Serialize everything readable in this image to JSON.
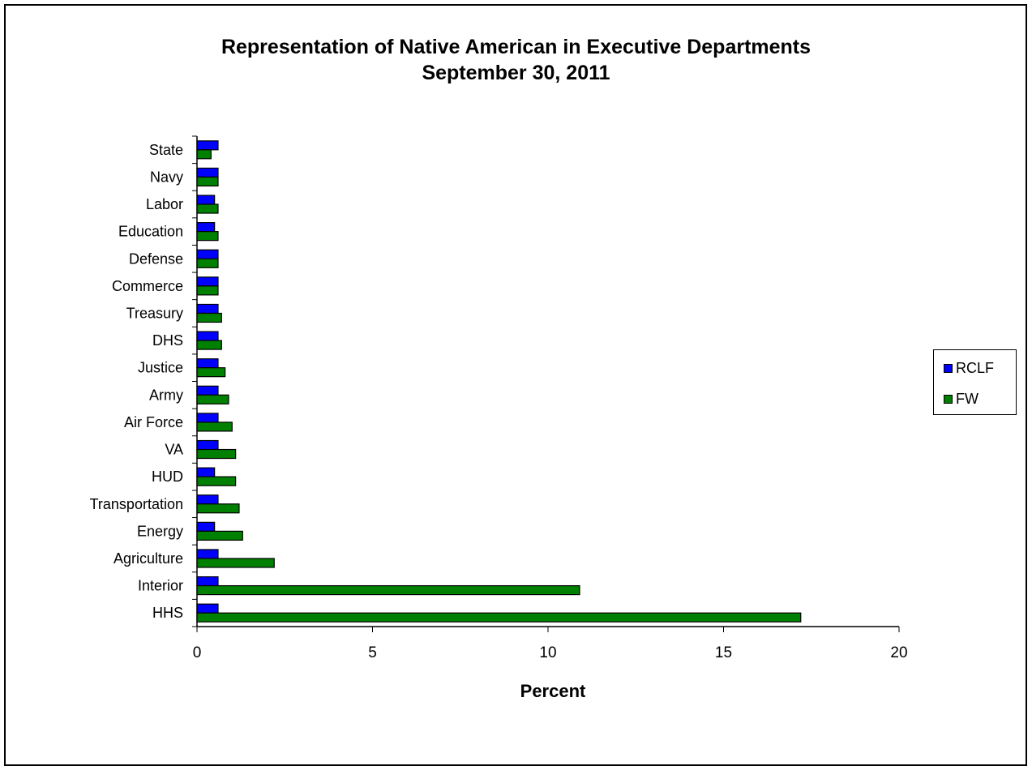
{
  "chart_data": {
    "type": "bar",
    "orientation": "horizontal",
    "title": "Representation of Native American in Executive Departments",
    "subtitle": "September 30, 2011",
    "xlabel": "Percent",
    "ylabel": "",
    "xlim": [
      0,
      20
    ],
    "x_ticks": [
      "0",
      "5",
      "10",
      "15",
      "20"
    ],
    "grid": false,
    "legend_position": "right",
    "categories": [
      "State",
      "Navy",
      "Labor",
      "Education",
      "Defense",
      "Commerce",
      "Treasury",
      "DHS",
      "Justice",
      "Army",
      "Air Force",
      "VA",
      "HUD",
      "Transportation",
      "Energy",
      "Agriculture",
      "Interior",
      "HHS"
    ],
    "series": [
      {
        "name": "RCLF",
        "color": "#0000ff",
        "values": [
          0.6,
          0.6,
          0.5,
          0.5,
          0.6,
          0.6,
          0.6,
          0.6,
          0.6,
          0.6,
          0.6,
          0.6,
          0.5,
          0.6,
          0.5,
          0.6,
          0.6,
          0.6
        ]
      },
      {
        "name": "FW",
        "color": "#008000",
        "values": [
          0.4,
          0.6,
          0.6,
          0.6,
          0.6,
          0.6,
          0.7,
          0.7,
          0.8,
          0.9,
          1.0,
          1.1,
          1.1,
          1.2,
          1.3,
          2.2,
          10.9,
          17.2
        ]
      }
    ]
  }
}
